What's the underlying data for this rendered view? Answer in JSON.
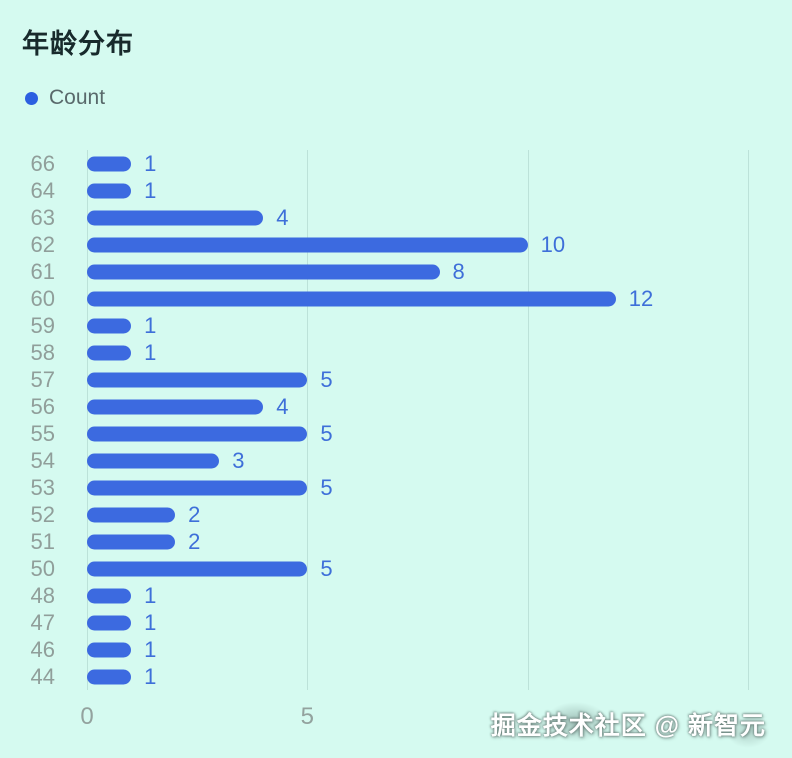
{
  "colors": {
    "background": "#d5faf0",
    "bar": "#3c6ae0",
    "value_label": "#3e6fd9",
    "category_label": "#909e9a",
    "tick_label": "#93a29e",
    "gridline": "rgba(137,176,167,0.32)",
    "title": "#182a2c",
    "legend_text": "#59696b",
    "legend_dot": "#2c5fe0",
    "watermark_text": "#ffffff"
  },
  "chart_data": {
    "type": "bar",
    "orientation": "horizontal",
    "title": "年龄分布",
    "series_name": "Count",
    "categories": [
      "66",
      "64",
      "63",
      "62",
      "61",
      "60",
      "59",
      "58",
      "57",
      "56",
      "55",
      "54",
      "53",
      "52",
      "51",
      "50",
      "48",
      "47",
      "46",
      "44"
    ],
    "values": [
      1,
      1,
      4,
      10,
      8,
      12,
      1,
      1,
      5,
      4,
      5,
      3,
      5,
      2,
      2,
      5,
      1,
      1,
      1,
      1
    ],
    "xlabel": "",
    "ylabel": "",
    "xlim": [
      0,
      16
    ],
    "x_tick_labels": [
      "0",
      "5"
    ],
    "x_tick_values": [
      0,
      5
    ],
    "x_gridline_values": [
      0,
      5,
      10,
      15
    ],
    "grid": true,
    "value_labels_shown": true,
    "legend_position": "top-left"
  },
  "watermark": {
    "text": "掘金技术社区 @ 新智元"
  }
}
